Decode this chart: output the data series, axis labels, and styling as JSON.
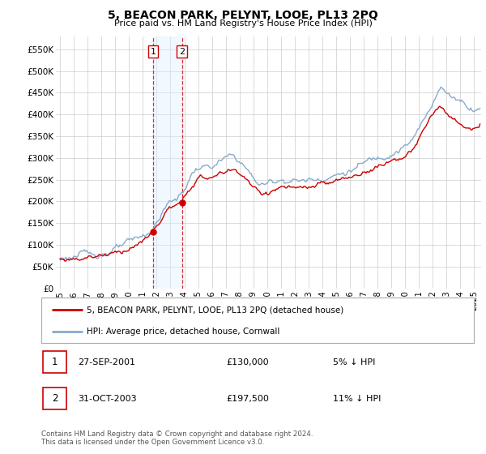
{
  "title": "5, BEACON PARK, PELYNT, LOOE, PL13 2PQ",
  "subtitle": "Price paid vs. HM Land Registry's House Price Index (HPI)",
  "ylabel_ticks": [
    "£0",
    "£50K",
    "£100K",
    "£150K",
    "£200K",
    "£250K",
    "£300K",
    "£350K",
    "£400K",
    "£450K",
    "£500K",
    "£550K"
  ],
  "ytick_values": [
    0,
    50000,
    100000,
    150000,
    200000,
    250000,
    300000,
    350000,
    400000,
    450000,
    500000,
    550000
  ],
  "ylim": [
    0,
    580000
  ],
  "xstart_year": 1995,
  "xend_year": 2025,
  "t1_year": 2001.75,
  "t2_year": 2003.833,
  "t1_price": 130000,
  "t2_price": 197500,
  "legend_line1": "5, BEACON PARK, PELYNT, LOOE, PL13 2PQ (detached house)",
  "legend_line2": "HPI: Average price, detached house, Cornwall",
  "table_row1": [
    "1",
    "27-SEP-2001",
    "£130,000",
    "5% ↓ HPI"
  ],
  "table_row2": [
    "2",
    "31-OCT-2003",
    "£197,500",
    "11% ↓ HPI"
  ],
  "footer": "Contains HM Land Registry data © Crown copyright and database right 2024.\nThis data is licensed under the Open Government Licence v3.0.",
  "line_color_red": "#cc0000",
  "line_color_blue": "#88aacc",
  "shaded_color": "#ddeeff",
  "grid_color": "#cccccc",
  "plot_bg": "#ffffff"
}
